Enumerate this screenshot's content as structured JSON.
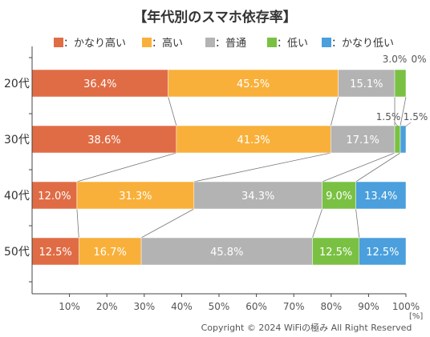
{
  "chart_data": {
    "type": "bar",
    "orientation": "horizontal-stacked-100",
    "title": "【年代別のスマホ依存率】",
    "categories": [
      "20代",
      "30代",
      "40代",
      "50代"
    ],
    "series": [
      {
        "name": "：かなり高い",
        "color": "#e06c45",
        "values": [
          36.4,
          38.6,
          12.0,
          12.5
        ]
      },
      {
        "name": "：高い",
        "color": "#f9b03a",
        "values": [
          45.5,
          41.3,
          31.3,
          16.7
        ]
      },
      {
        "name": "：普通",
        "color": "#b3b3b3",
        "values": [
          15.1,
          17.1,
          34.3,
          45.8
        ]
      },
      {
        "name": "：低い",
        "color": "#7ac143",
        "values": [
          3.0,
          1.5,
          9.0,
          12.5
        ]
      },
      {
        "name": "：かなり低い",
        "color": "#4a9fdc",
        "values": [
          0,
          1.5,
          13.4,
          12.5
        ]
      }
    ],
    "data_labels": [
      [
        "36.4%",
        "45.5%",
        "15.1%",
        "3.0%",
        "0%"
      ],
      [
        "38.6%",
        "41.3%",
        "17.1%",
        "1.5%",
        "1.5%"
      ],
      [
        "12.0%",
        "31.3%",
        "34.3%",
        "9.0%",
        "13.4%"
      ],
      [
        "12.5%",
        "16.7%",
        "45.8%",
        "12.5%",
        "12.5%"
      ]
    ],
    "x_ticks": [
      "10%",
      "20%",
      "30%",
      "40%",
      "50%",
      "60%",
      "70%",
      "80%",
      "90%",
      "100%"
    ],
    "x_unit": "[%]",
    "xlim": [
      0,
      100
    ],
    "legend_position": "top",
    "grid": false,
    "connector_lines": true
  },
  "footer": {
    "copyright": "Copyright © 2024 WiFiの極み All Right Reserved"
  }
}
